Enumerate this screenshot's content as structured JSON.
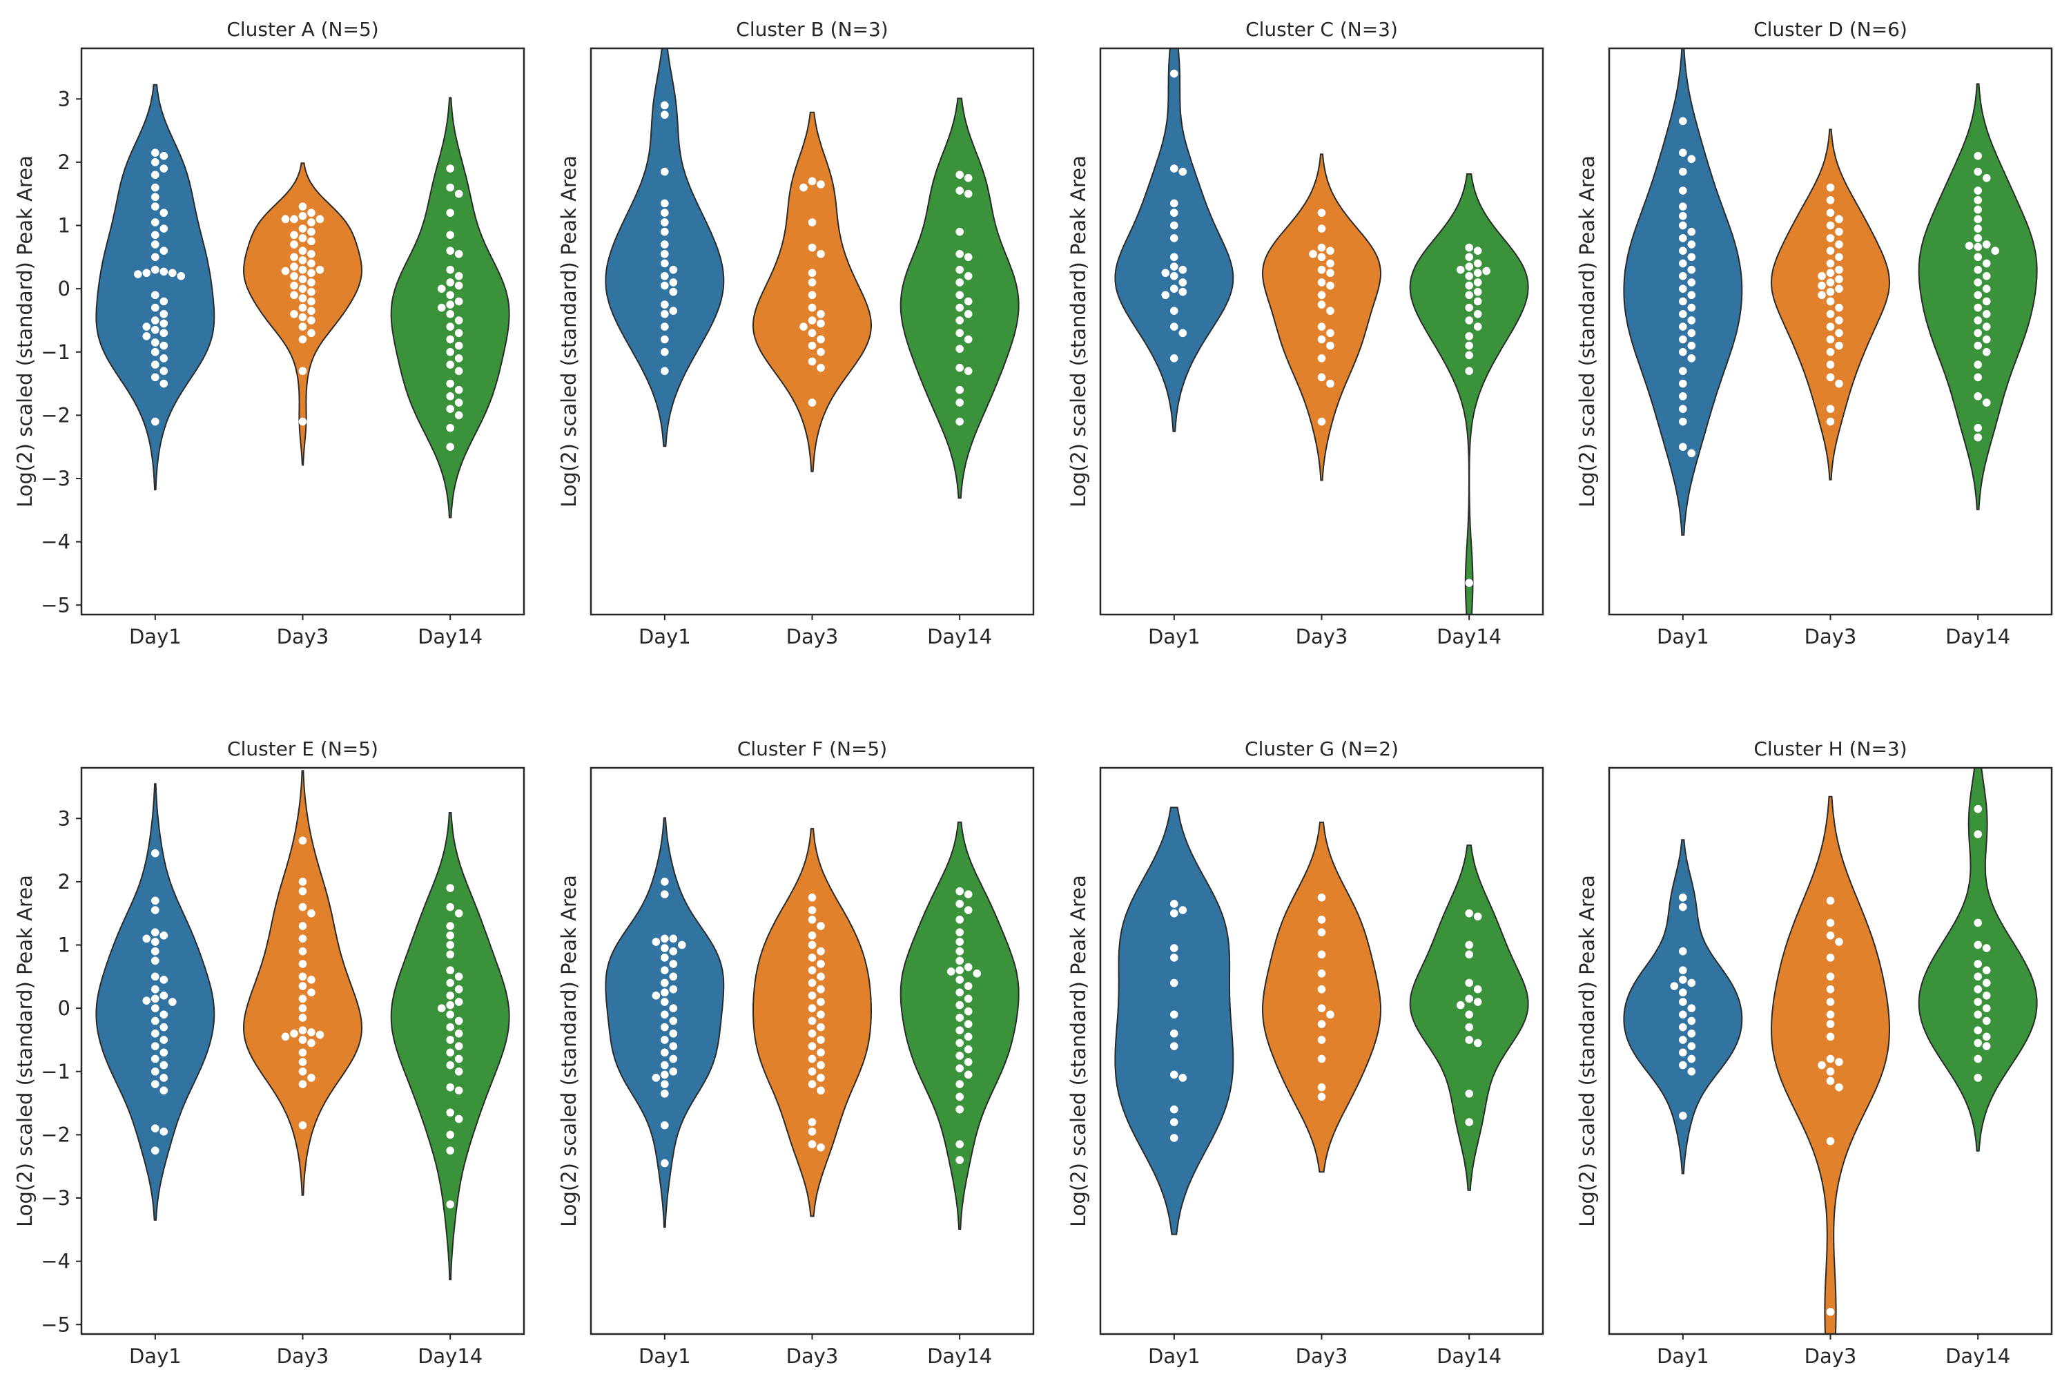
{
  "figure": {
    "ylabel": "Log(2) scaled (standard) Peak Area",
    "y_ticks": [
      3,
      2,
      1,
      0,
      -1,
      -2,
      -3,
      -4,
      -5
    ],
    "y_tick_labels": [
      "3",
      "2",
      "1",
      "0",
      "−1",
      "−2",
      "−3",
      "−4",
      "−5"
    ],
    "ylim": [
      -5.15,
      3.8
    ],
    "categories": [
      "Day1",
      "Day3",
      "Day14"
    ],
    "colors": {
      "Day1": "#3274a1",
      "Day3": "#e1812c",
      "Day14": "#3a923a",
      "points": "#ffffff",
      "outline": "#2b2b2b"
    }
  },
  "chart_data": [
    {
      "type": "violin",
      "title": "Cluster A (N=5)",
      "categories": [
        "Day1",
        "Day3",
        "Day14"
      ],
      "ylim": [
        -5.15,
        3.8
      ],
      "series": [
        {
          "name": "Day1",
          "points": [
            2.15,
            2.1,
            2.0,
            1.9,
            1.8,
            1.6,
            1.45,
            1.3,
            1.2,
            1.05,
            0.95,
            0.85,
            0.7,
            0.6,
            0.5,
            0.3,
            0.27,
            0.25,
            0.25,
            0.23,
            0.2,
            -0.1,
            -0.2,
            -0.3,
            -0.4,
            -0.5,
            -0.55,
            -0.6,
            -0.65,
            -0.7,
            -0.75,
            -0.85,
            -0.9,
            -1.0,
            -1.1,
            -1.2,
            -1.3,
            -1.4,
            -1.5,
            -2.1
          ]
        },
        {
          "name": "Day3",
          "points": [
            1.3,
            1.2,
            1.15,
            1.1,
            1.1,
            1.1,
            1.05,
            0.95,
            0.9,
            0.85,
            0.8,
            0.75,
            0.7,
            0.6,
            0.55,
            0.5,
            0.45,
            0.4,
            0.35,
            0.3,
            0.3,
            0.28,
            0.25,
            0.2,
            0.15,
            0.1,
            0.05,
            0.0,
            -0.05,
            -0.1,
            -0.15,
            -0.2,
            -0.3,
            -0.35,
            -0.4,
            -0.45,
            -0.5,
            -0.6,
            -0.7,
            -0.8,
            -1.3,
            -2.1
          ]
        },
        {
          "name": "Day14",
          "points": [
            1.9,
            1.6,
            1.5,
            1.2,
            0.85,
            0.6,
            0.55,
            0.3,
            0.2,
            0.1,
            0.05,
            0.0,
            -0.1,
            -0.2,
            -0.25,
            -0.3,
            -0.4,
            -0.5,
            -0.6,
            -0.7,
            -0.8,
            -0.9,
            -1.0,
            -1.1,
            -1.2,
            -1.3,
            -1.5,
            -1.6,
            -1.7,
            -1.8,
            -1.9,
            -2.0,
            -2.2,
            -2.5
          ]
        }
      ]
    },
    {
      "type": "violin",
      "title": "Cluster B (N=3)",
      "categories": [
        "Day1",
        "Day3",
        "Day14"
      ],
      "ylim": [
        -5.15,
        3.8
      ],
      "series": [
        {
          "name": "Day1",
          "points": [
            2.9,
            2.75,
            1.85,
            1.35,
            1.2,
            1.05,
            0.9,
            0.7,
            0.55,
            0.4,
            0.3,
            0.2,
            0.1,
            0.05,
            -0.05,
            -0.25,
            -0.35,
            -0.4,
            -0.6,
            -0.8,
            -1.0,
            -1.3
          ]
        },
        {
          "name": "Day3",
          "points": [
            1.7,
            1.65,
            1.6,
            1.05,
            0.65,
            0.55,
            0.25,
            0.1,
            -0.1,
            -0.3,
            -0.4,
            -0.5,
            -0.55,
            -0.6,
            -0.7,
            -0.8,
            -0.9,
            -1.0,
            -1.15,
            -1.25,
            -1.8
          ]
        },
        {
          "name": "Day14",
          "points": [
            1.8,
            1.75,
            1.55,
            1.5,
            0.9,
            0.55,
            0.5,
            0.3,
            0.2,
            0.1,
            -0.1,
            -0.2,
            -0.3,
            -0.4,
            -0.5,
            -0.7,
            -0.8,
            -0.95,
            -1.25,
            -1.3,
            -1.6,
            -1.8,
            -2.1
          ]
        }
      ]
    },
    {
      "type": "violin",
      "title": "Cluster C (N=3)",
      "categories": [
        "Day1",
        "Day3",
        "Day14"
      ],
      "ylim": [
        -5.15,
        3.8
      ],
      "series": [
        {
          "name": "Day1",
          "points": [
            3.4,
            1.9,
            1.85,
            1.35,
            1.2,
            1.0,
            0.8,
            0.5,
            0.35,
            0.3,
            0.25,
            0.2,
            0.1,
            0.0,
            -0.05,
            -0.1,
            -0.35,
            -0.6,
            -0.7,
            -1.1
          ]
        },
        {
          "name": "Day3",
          "points": [
            1.2,
            0.95,
            0.65,
            0.6,
            0.55,
            0.5,
            0.4,
            0.3,
            0.25,
            0.1,
            0.05,
            -0.1,
            -0.25,
            -0.35,
            -0.6,
            -0.7,
            -0.8,
            -0.9,
            -1.1,
            -1.4,
            -1.5,
            -2.1
          ]
        },
        {
          "name": "Day14",
          "points": [
            0.65,
            0.6,
            0.5,
            0.4,
            0.35,
            0.3,
            0.28,
            0.25,
            0.2,
            0.1,
            0.05,
            -0.05,
            -0.1,
            -0.2,
            -0.3,
            -0.4,
            -0.5,
            -0.6,
            -0.75,
            -0.9,
            -1.05,
            -1.3,
            -4.65
          ]
        }
      ]
    },
    {
      "type": "violin",
      "title": "Cluster D (N=6)",
      "categories": [
        "Day1",
        "Day3",
        "Day14"
      ],
      "ylim": [
        -5.15,
        3.8
      ],
      "series": [
        {
          "name": "Day1",
          "points": [
            2.65,
            2.15,
            2.05,
            1.85,
            1.55,
            1.3,
            1.15,
            1.0,
            0.9,
            0.8,
            0.7,
            0.6,
            0.5,
            0.4,
            0.3,
            0.2,
            0.1,
            0.0,
            -0.1,
            -0.2,
            -0.3,
            -0.4,
            -0.5,
            -0.6,
            -0.7,
            -0.8,
            -0.9,
            -1.0,
            -1.1,
            -1.3,
            -1.5,
            -1.7,
            -1.9,
            -2.1,
            -2.5,
            -2.6
          ]
        },
        {
          "name": "Day3",
          "points": [
            1.6,
            1.4,
            1.2,
            1.1,
            1.0,
            0.9,
            0.8,
            0.7,
            0.6,
            0.5,
            0.4,
            0.3,
            0.25,
            0.2,
            0.15,
            0.1,
            0.05,
            0.0,
            -0.05,
            -0.1,
            -0.2,
            -0.3,
            -0.4,
            -0.5,
            -0.6,
            -0.7,
            -0.8,
            -0.9,
            -1.0,
            -1.2,
            -1.4,
            -1.5,
            -1.9,
            -2.1
          ]
        },
        {
          "name": "Day14",
          "points": [
            2.1,
            1.85,
            1.75,
            1.55,
            1.4,
            1.25,
            1.1,
            0.95,
            0.8,
            0.7,
            0.68,
            0.66,
            0.6,
            0.5,
            0.4,
            0.3,
            0.2,
            0.1,
            0.0,
            -0.1,
            -0.2,
            -0.3,
            -0.4,
            -0.5,
            -0.6,
            -0.7,
            -0.8,
            -0.9,
            -1.0,
            -1.2,
            -1.4,
            -1.7,
            -1.8,
            -2.2,
            -2.35
          ]
        }
      ]
    },
    {
      "type": "violin",
      "title": "Cluster E (N=5)",
      "categories": [
        "Day1",
        "Day3",
        "Day14"
      ],
      "ylim": [
        -5.15,
        3.8
      ],
      "series": [
        {
          "name": "Day1",
          "points": [
            2.45,
            1.7,
            1.55,
            1.2,
            1.15,
            1.1,
            1.05,
            0.9,
            0.75,
            0.5,
            0.45,
            0.3,
            0.2,
            0.15,
            0.12,
            0.1,
            0.0,
            -0.1,
            -0.2,
            -0.3,
            -0.4,
            -0.5,
            -0.6,
            -0.7,
            -0.8,
            -0.9,
            -1.0,
            -1.1,
            -1.2,
            -1.3,
            -1.9,
            -1.95,
            -2.25
          ]
        },
        {
          "name": "Day3",
          "points": [
            2.65,
            2.0,
            1.85,
            1.6,
            1.5,
            1.3,
            1.1,
            0.9,
            0.7,
            0.5,
            0.45,
            0.35,
            0.25,
            0.15,
            0.0,
            -0.15,
            -0.35,
            -0.38,
            -0.4,
            -0.42,
            -0.45,
            -0.5,
            -0.55,
            -0.7,
            -0.85,
            -1.0,
            -1.1,
            -1.2,
            -1.85
          ]
        },
        {
          "name": "Day14",
          "points": [
            1.9,
            1.6,
            1.5,
            1.3,
            1.15,
            1.0,
            0.85,
            0.6,
            0.5,
            0.4,
            0.3,
            0.2,
            0.1,
            0.05,
            0.0,
            -0.1,
            -0.2,
            -0.3,
            -0.4,
            -0.5,
            -0.6,
            -0.7,
            -0.8,
            -0.9,
            -1.0,
            -1.25,
            -1.3,
            -1.65,
            -1.75,
            -2.0,
            -2.25,
            -3.1
          ]
        }
      ]
    },
    {
      "type": "violin",
      "title": "Cluster F (N=5)",
      "categories": [
        "Day1",
        "Day3",
        "Day14"
      ],
      "ylim": [
        -5.15,
        3.8
      ],
      "series": [
        {
          "name": "Day1",
          "points": [
            2.0,
            1.8,
            1.1,
            1.1,
            1.05,
            1.0,
            0.95,
            0.9,
            0.8,
            0.7,
            0.6,
            0.5,
            0.4,
            0.3,
            0.25,
            0.2,
            0.1,
            0.0,
            -0.1,
            -0.2,
            -0.3,
            -0.4,
            -0.5,
            -0.6,
            -0.7,
            -0.8,
            -0.9,
            -1.0,
            -1.05,
            -1.1,
            -1.2,
            -1.35,
            -1.85,
            -2.45
          ]
        },
        {
          "name": "Day3",
          "points": [
            1.75,
            1.55,
            1.4,
            1.3,
            1.15,
            1.0,
            0.9,
            0.8,
            0.7,
            0.6,
            0.5,
            0.4,
            0.3,
            0.2,
            0.1,
            0.0,
            -0.1,
            -0.2,
            -0.3,
            -0.4,
            -0.5,
            -0.6,
            -0.7,
            -0.8,
            -0.9,
            -1.0,
            -1.1,
            -1.2,
            -1.3,
            -1.8,
            -1.95,
            -2.15,
            -2.2
          ]
        },
        {
          "name": "Day14",
          "points": [
            1.85,
            1.8,
            1.65,
            1.55,
            1.4,
            1.2,
            1.05,
            0.9,
            0.75,
            0.65,
            0.6,
            0.58,
            0.55,
            0.45,
            0.35,
            0.25,
            0.15,
            0.05,
            -0.05,
            -0.15,
            -0.25,
            -0.35,
            -0.45,
            -0.55,
            -0.65,
            -0.75,
            -0.85,
            -0.95,
            -1.05,
            -1.2,
            -1.4,
            -1.6,
            -2.15,
            -2.4
          ]
        }
      ]
    },
    {
      "type": "violin",
      "title": "Cluster G (N=2)",
      "categories": [
        "Day1",
        "Day3",
        "Day14"
      ],
      "ylim": [
        -5.15,
        3.8
      ],
      "series": [
        {
          "name": "Day1",
          "points": [
            1.65,
            1.55,
            1.5,
            0.95,
            0.8,
            0.4,
            -0.1,
            -0.4,
            -0.6,
            -1.05,
            -1.1,
            -1.6,
            -1.8,
            -2.05
          ]
        },
        {
          "name": "Day3",
          "points": [
            1.75,
            1.4,
            1.2,
            0.85,
            0.55,
            0.3,
            0.0,
            -0.1,
            -0.25,
            -0.5,
            -0.8,
            -1.25,
            -1.4
          ]
        },
        {
          "name": "Day14",
          "points": [
            1.5,
            1.45,
            1.0,
            0.85,
            0.4,
            0.3,
            0.15,
            0.1,
            0.05,
            -0.1,
            -0.3,
            -0.5,
            -0.55,
            -1.35,
            -1.8
          ]
        }
      ]
    },
    {
      "type": "violin",
      "title": "Cluster H (N=3)",
      "categories": [
        "Day1",
        "Day3",
        "Day14"
      ],
      "ylim": [
        -5.15,
        3.8
      ],
      "series": [
        {
          "name": "Day1",
          "points": [
            1.75,
            1.6,
            0.9,
            0.6,
            0.45,
            0.4,
            0.35,
            0.25,
            0.1,
            0.0,
            -0.1,
            -0.2,
            -0.3,
            -0.4,
            -0.5,
            -0.6,
            -0.7,
            -0.8,
            -0.9,
            -1.0,
            -1.7
          ]
        },
        {
          "name": "Day3",
          "points": [
            1.7,
            1.35,
            1.15,
            1.05,
            0.8,
            0.5,
            0.3,
            0.1,
            -0.1,
            -0.25,
            -0.45,
            -0.8,
            -0.85,
            -0.9,
            -1.0,
            -1.15,
            -1.25,
            -2.1,
            -4.8
          ]
        },
        {
          "name": "Day14",
          "points": [
            3.15,
            2.75,
            1.35,
            1.0,
            0.95,
            0.7,
            0.6,
            0.5,
            0.4,
            0.3,
            0.2,
            0.1,
            0.0,
            -0.1,
            -0.2,
            -0.35,
            -0.45,
            -0.55,
            -0.6,
            -0.8,
            -1.1
          ]
        }
      ]
    }
  ]
}
